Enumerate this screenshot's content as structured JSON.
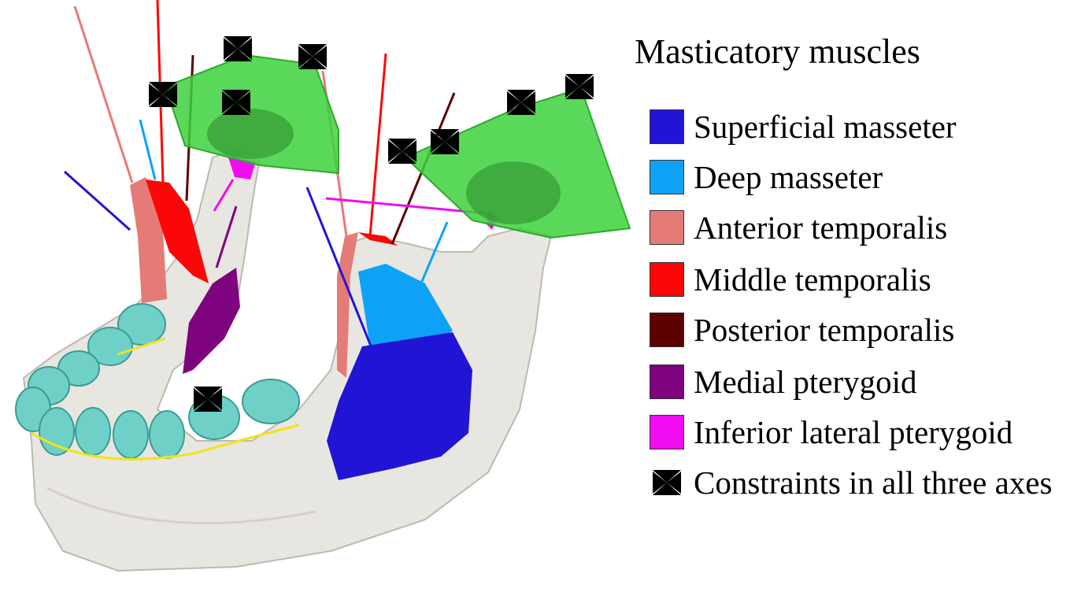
{
  "legend": {
    "title": "Masticatory muscles",
    "items": [
      {
        "label": "Superficial masseter",
        "color": "#2214d4"
      },
      {
        "label": "Deep masseter",
        "color": "#0ea2f7"
      },
      {
        "label": "Anterior temporalis",
        "color": "#e57b76"
      },
      {
        "label": "Middle temporalis",
        "color": "#fb0707"
      },
      {
        "label": "Posterior temporalis",
        "color": "#5c0000"
      },
      {
        "label": "Medial pterygoid",
        "color": "#7f037f"
      },
      {
        "label": "Inferior lateral pterygoid",
        "color": "#f00cf0"
      }
    ],
    "constraint_label": "Constraints in all three axes",
    "constraint_icon": "bowtie-constraint-icon"
  },
  "colors": {
    "bone": "#e8e6e1",
    "teeth": "#6fd0c8",
    "gumline": "#f0e31a",
    "joint_box": "#3dd13d",
    "condyle": "#2e8f2e"
  }
}
